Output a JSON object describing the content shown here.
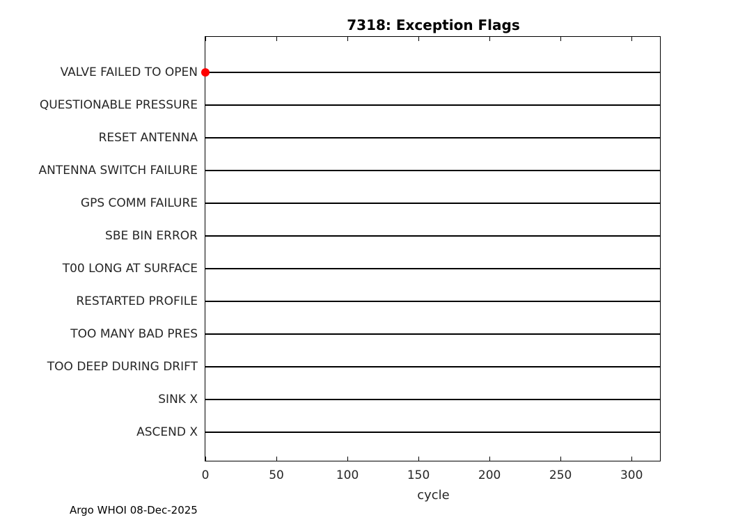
{
  "title": "7318: Exception Flags",
  "caption": "Argo WHOI 08-Dec-2025",
  "chart_data": {
    "type": "scatter",
    "title": "7318: Exception Flags",
    "xlabel": "cycle",
    "ylabel": "",
    "xlim": [
      0,
      320
    ],
    "xticks": [
      0,
      50,
      100,
      150,
      200,
      250,
      300
    ],
    "grid": false,
    "categories": [
      "VALVE FAILED TO OPEN",
      "QUESTIONABLE PRESSURE",
      "RESET ANTENNA",
      "ANTENNA SWITCH FAILURE",
      "GPS COMM FAILURE",
      "SBE BIN ERROR",
      "T00 LONG AT SURFACE",
      "RESTARTED PROFILE",
      "TOO MANY BAD PRES",
      "TOO DEEP DURING DRIFT",
      "SINK X",
      "ASCEND X"
    ],
    "points": [
      {
        "category": "VALVE FAILED TO OPEN",
        "x": 0
      }
    ],
    "colors": {
      "line": "#000000",
      "marker": "#ff0000",
      "text": "#262626"
    }
  }
}
